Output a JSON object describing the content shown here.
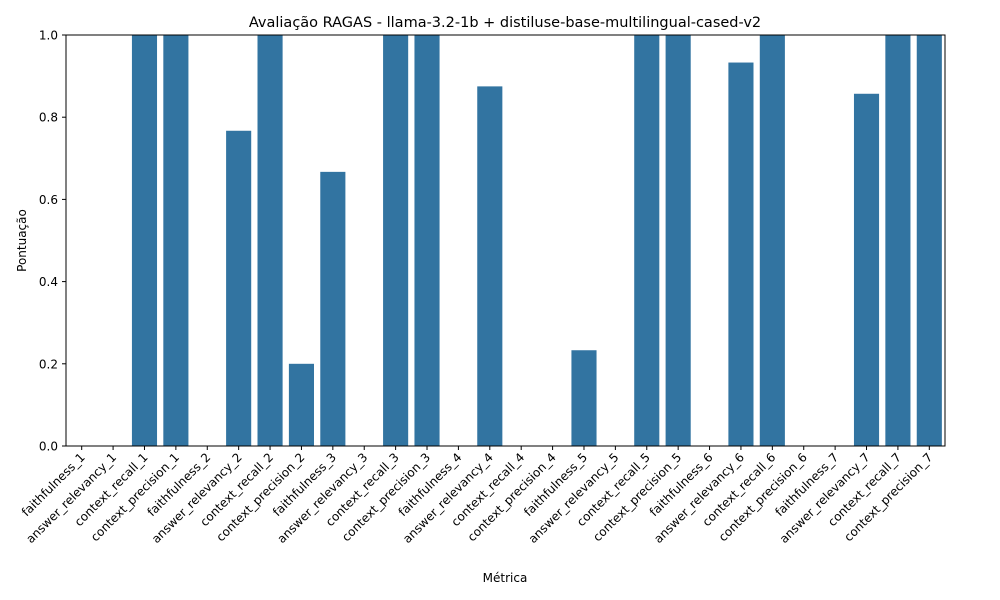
{
  "chart_data": {
    "type": "bar",
    "title": "Avaliação RAGAS - llama-3.2-1b + distiluse-base-multilingual-cased-v2",
    "xlabel": "Métrica",
    "ylabel": "Pontuação",
    "ylim": [
      0,
      1.0
    ],
    "yticks": [
      "0.0",
      "0.2",
      "0.4",
      "0.6",
      "0.8",
      "1.0"
    ],
    "grid": false,
    "bar_color": "#3274a1",
    "categories": [
      "faithfulness_1",
      "answer_relevancy_1",
      "context_recall_1",
      "context_precision_1",
      "faithfulness_2",
      "answer_relevancy_2",
      "context_recall_2",
      "context_precision_2",
      "faithfulness_3",
      "answer_relevancy_3",
      "context_recall_3",
      "context_precision_3",
      "faithfulness_4",
      "answer_relevancy_4",
      "context_recall_4",
      "context_precision_4",
      "faithfulness_5",
      "answer_relevancy_5",
      "context_recall_5",
      "context_precision_5",
      "faithfulness_6",
      "answer_relevancy_6",
      "context_recall_6",
      "context_precision_6",
      "faithfulness_7",
      "answer_relevancy_7",
      "context_recall_7",
      "context_precision_7"
    ],
    "values": [
      0.0,
      0.0,
      1.0,
      1.0,
      0.0,
      0.767,
      1.0,
      0.2,
      0.667,
      0.0,
      1.0,
      1.0,
      0.0,
      0.875,
      0.0,
      0.0,
      0.233,
      0.0,
      1.0,
      1.0,
      0.0,
      0.933,
      1.0,
      0.0,
      0.0,
      0.857,
      1.0,
      1.0
    ]
  }
}
